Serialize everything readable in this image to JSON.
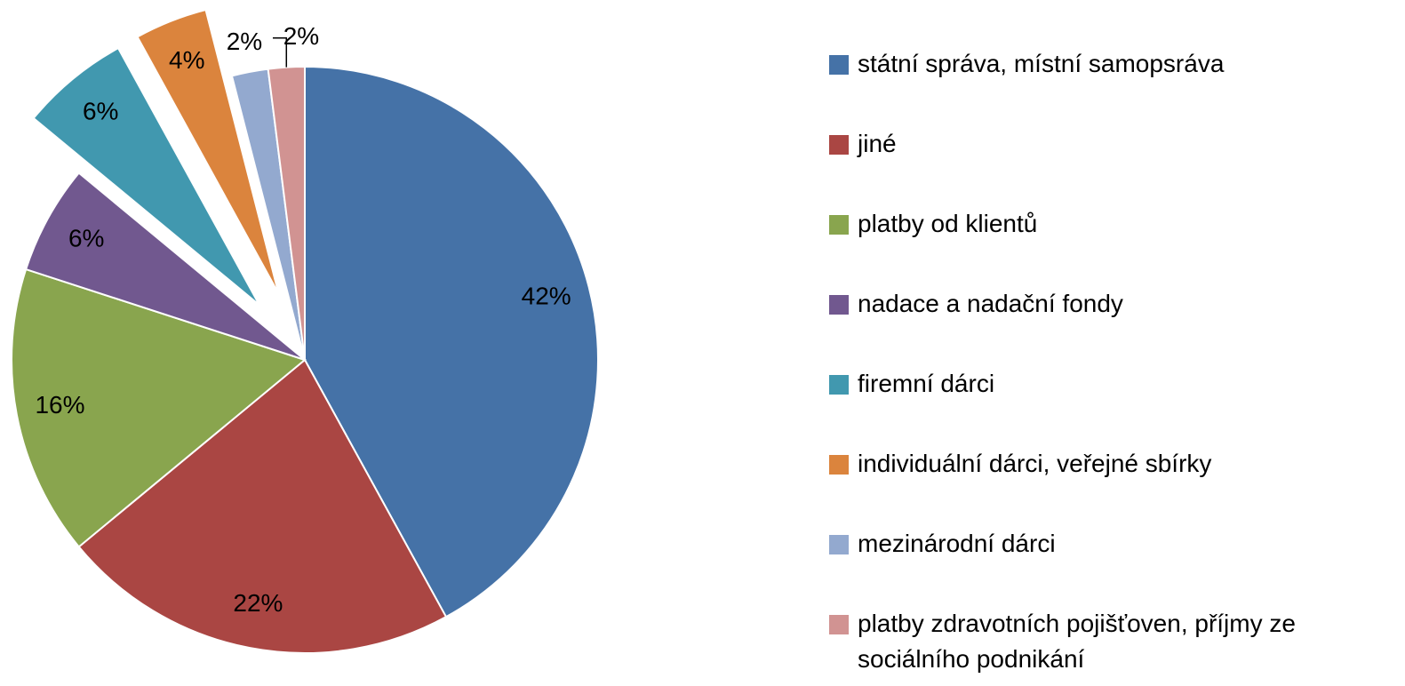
{
  "chart_data": {
    "type": "pie",
    "categories": [
      "státní správa, místní samopsráva",
      "jiné",
      "platby od klientů",
      "nadace a nadační fondy",
      "firemní dárci",
      "individuální dárci, veřejné sbírky",
      "mezinárodní dárci",
      "platby zdravotních pojišťoven, příjmy ze sociálního podnikání"
    ],
    "values": [
      42,
      22,
      16,
      6,
      6,
      4,
      2,
      2
    ],
    "value_labels": [
      "42%",
      "22%",
      "16%",
      "6%",
      "6%",
      "4%",
      "2%",
      "2%"
    ],
    "colors": [
      "#4572a7",
      "#aa4643",
      "#89a54e",
      "#71588f",
      "#4198af",
      "#db843d",
      "#93a9cf",
      "#d19392"
    ],
    "explode": [
      false,
      false,
      false,
      false,
      true,
      true,
      false,
      false
    ],
    "legend": "right"
  }
}
